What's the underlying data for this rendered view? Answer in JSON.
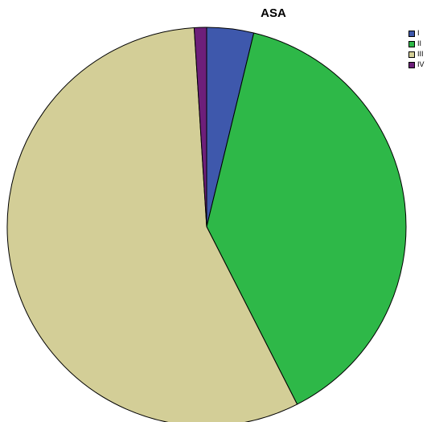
{
  "chart_data": {
    "type": "pie",
    "title": "ASA",
    "categories": [
      "I",
      "II",
      "III",
      "IV"
    ],
    "values": [
      3.8,
      38.7,
      56.5,
      1.0
    ],
    "colors": [
      "#3e58ac",
      "#2eb848",
      "#d3ce97",
      "#6d1f7a"
    ],
    "start_angle_deg": 0,
    "direction": "clockwise",
    "legend": "top-right"
  }
}
